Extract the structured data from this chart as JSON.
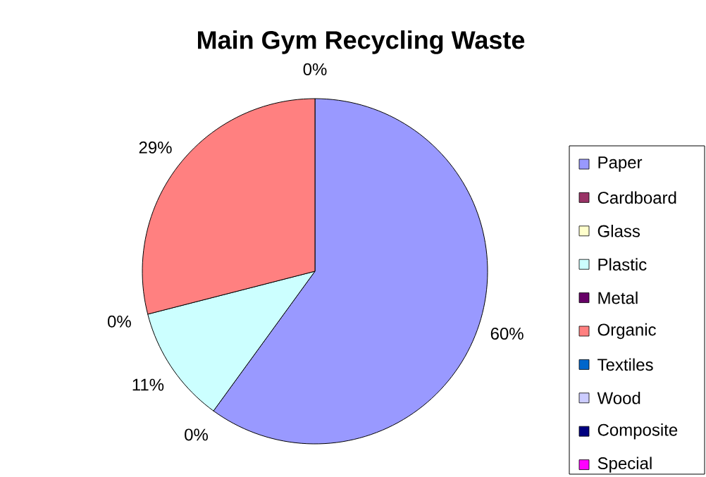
{
  "chart_data": {
    "type": "pie",
    "title": "Main Gym Recycling Waste",
    "categories": [
      "Paper",
      "Cardboard",
      "Glass",
      "Plastic",
      "Metal",
      "Organic",
      "Textiles",
      "Wood",
      "Composite",
      "Special"
    ],
    "values": [
      60,
      0,
      0,
      11,
      0,
      29,
      0,
      0,
      0,
      0
    ],
    "value_labels": [
      "60%",
      "0%",
      null,
      "11%",
      "0%",
      "29%",
      "0%",
      null,
      null,
      null
    ],
    "colors": [
      "#9999ff",
      "#993366",
      "#ffffcc",
      "#ccffff",
      "#660066",
      "#ff8080",
      "#0066cc",
      "#ccccff",
      "#000080",
      "#ff00ff"
    ],
    "legend": "right"
  }
}
